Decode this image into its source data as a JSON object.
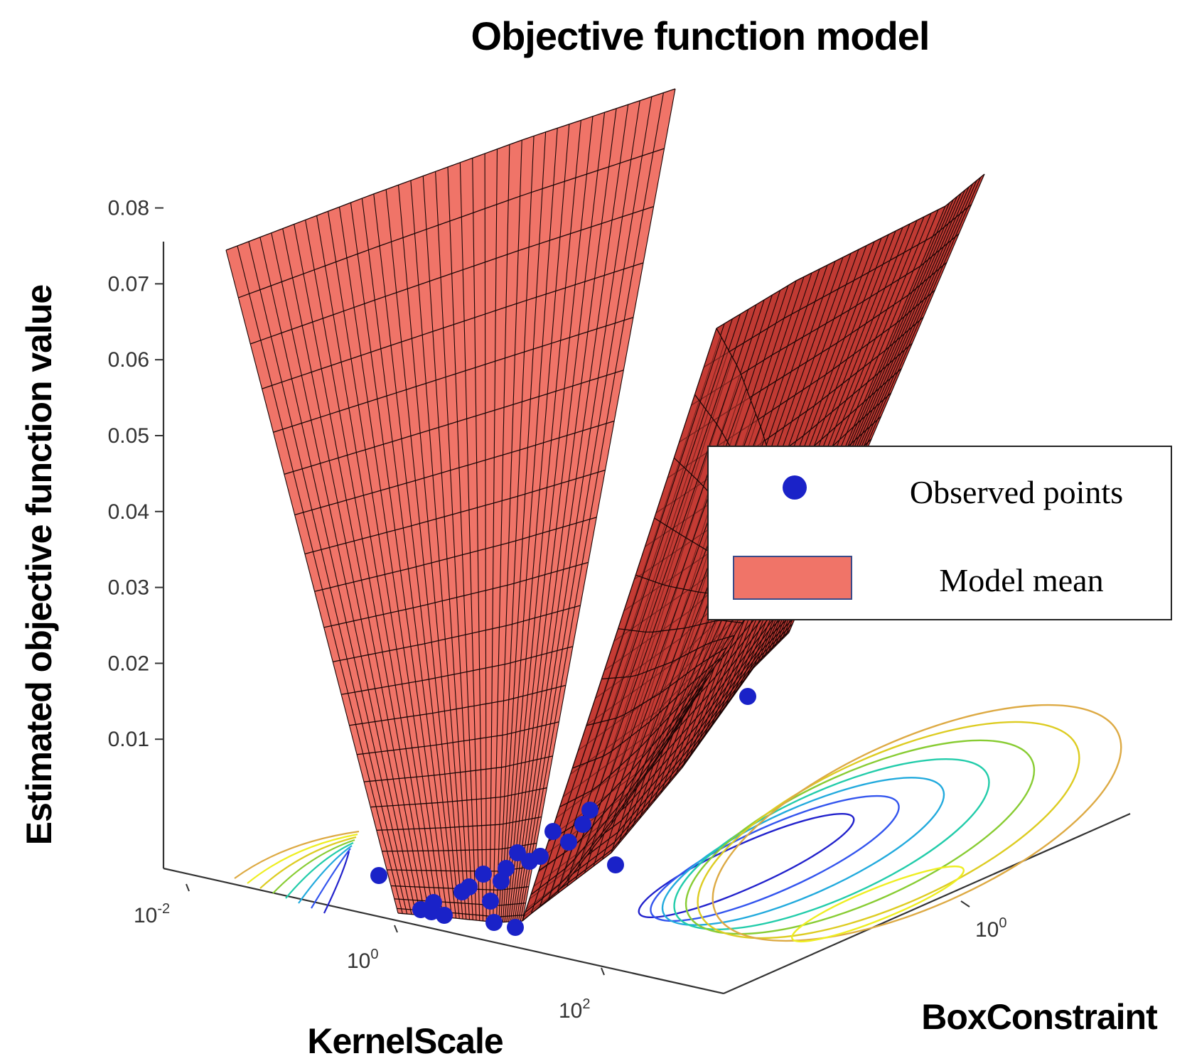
{
  "chart_data": {
    "type": "surface3d",
    "title": "Objective function model",
    "zlabel": "Estimated objective function value",
    "xlabel": "KernelScale",
    "ylabel": "BoxConstraint",
    "zlim": [
      0,
      0.08
    ],
    "z_ticks": [
      "0.01",
      "0.02",
      "0.03",
      "0.04",
      "0.05",
      "0.06",
      "0.07",
      "0.08"
    ],
    "x_ticks": [
      {
        "base": "10",
        "exp": "-2"
      },
      {
        "base": "10",
        "exp": "0"
      },
      {
        "base": "10",
        "exp": "2"
      }
    ],
    "y_ticks": [
      {
        "base": "10",
        "exp": "0"
      }
    ],
    "legend": {
      "position": "right",
      "entries": [
        {
          "label": "Observed points",
          "marker": "circle",
          "color": "#1a22c8"
        },
        {
          "label": "Model mean",
          "marker": "patch",
          "color": "#f07468"
        }
      ]
    },
    "series": [
      {
        "name": "Model mean",
        "kind": "surface",
        "color": "#f07468"
      },
      {
        "name": "Observed points",
        "kind": "scatter",
        "color": "#1a22c8"
      }
    ],
    "observed_points_count": 22,
    "contour_colors": [
      "#2222cc",
      "#3355ee",
      "#22aadd",
      "#22ccaa",
      "#88cc33",
      "#ddcc22",
      "#eeee22",
      "#ddaa44"
    ]
  }
}
